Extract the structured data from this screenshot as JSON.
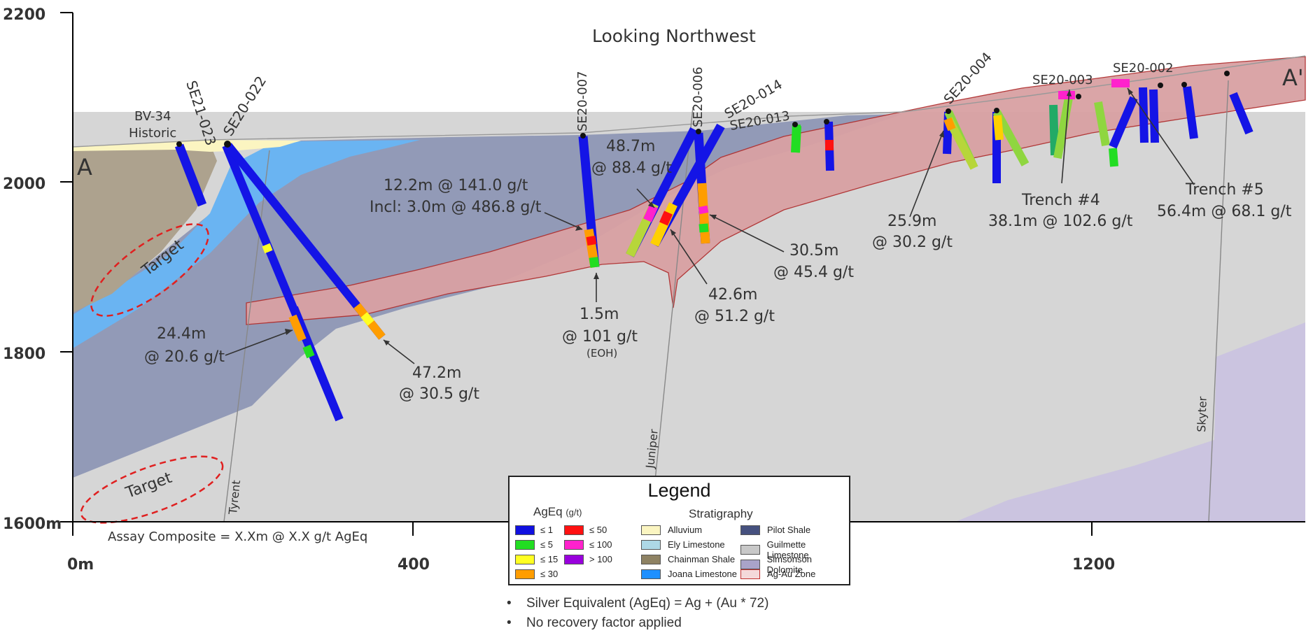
{
  "header": "Looking Northwest",
  "section_ends": {
    "left": "A",
    "right": "A'"
  },
  "y_axis": {
    "ticks": [
      "2200",
      "2000",
      "1800",
      "1600m"
    ]
  },
  "x_axis": {
    "ticks": [
      "0m",
      "400",
      "1200"
    ]
  },
  "assay_note": "Assay Composite = X.Xm @ X.X g/t AgEq",
  "drillholes": {
    "bv34": "BV-34",
    "bv34_sub": "Historic",
    "se21_023": "SE21-023",
    "se20_022": "SE20-022",
    "se20_007": "SE20-007",
    "se20_006": "SE20-006",
    "se20_014": "SE20-014",
    "se20_013": "SE20-013",
    "se20_004": "SE20-004",
    "se20_003": "SE20-003",
    "se20_002": "SE20-002"
  },
  "faults": {
    "tyrent": "Tyrent",
    "juniper": "Juniper",
    "skyter": "Skyter"
  },
  "targets": [
    "Target",
    "Target"
  ],
  "intercepts": {
    "a1_l1": "12.2m @ 141.0 g/t",
    "a1_l2": "Incl: 3.0m @ 486.8 g/t",
    "a2_l1": "48.7m",
    "a2_l2": "@ 88.4 g/t",
    "a3_l1": "24.4m",
    "a3_l2": "@ 20.6 g/t",
    "a4_l1": "47.2m",
    "a4_l2": "@ 30.5 g/t",
    "a5_l1": "1.5m",
    "a5_l2": "@ 101 g/t",
    "a5_l3": "(EOH)",
    "a6_l1": "42.6m",
    "a6_l2": "@ 51.2 g/t",
    "a7_l1": "30.5m",
    "a7_l2": "@ 45.4 g/t",
    "a8_l1": "25.9m",
    "a8_l2": "@ 30.2 g/t",
    "a9_l1": "Trench #4",
    "a9_l2": "38.1m @ 102.6 g/t",
    "a10_l1": "Trench #5",
    "a10_l2": "56.4m @ 68.1 g/t"
  },
  "legend": {
    "title": "Legend",
    "ageq_head": "AgEq",
    "ageq_unit": "(g/t)",
    "strat_head": "Stratigraphy",
    "grades": [
      {
        "label": "≤ 1",
        "color": "#1010e0"
      },
      {
        "label": "≤ 5",
        "color": "#22dd22"
      },
      {
        "label": "≤ 15",
        "color": "#ffff22"
      },
      {
        "label": "≤ 30",
        "color": "#ff9d00"
      },
      {
        "label": "≤ 50",
        "color": "#ff1111"
      },
      {
        "label": "≤ 100",
        "color": "#ff22cc"
      },
      {
        "label": "> 100",
        "color": "#9900dd"
      }
    ],
    "units": [
      {
        "label": "Alluvium",
        "color": "#fbf5c1"
      },
      {
        "label": "Ely Limestone",
        "color": "#add8e6"
      },
      {
        "label": "Chainman Shale",
        "color": "#8e8263"
      },
      {
        "label": "Joana Limestone",
        "color": "#1e90ff"
      },
      {
        "label": "Pilot Shale",
        "color": "#46517f"
      },
      {
        "label": "Guilmette Limestone",
        "color": "#c8c8c8"
      },
      {
        "label": "Simsonson Dolomite",
        "color": "#a9a3c9"
      },
      {
        "label": "Ag-Au Zone",
        "color": "#d9a1a3"
      }
    ]
  },
  "notes": [
    "Silver Equivalent (AgEq) = Ag + (Au * 72)",
    "No recovery factor applied"
  ]
}
